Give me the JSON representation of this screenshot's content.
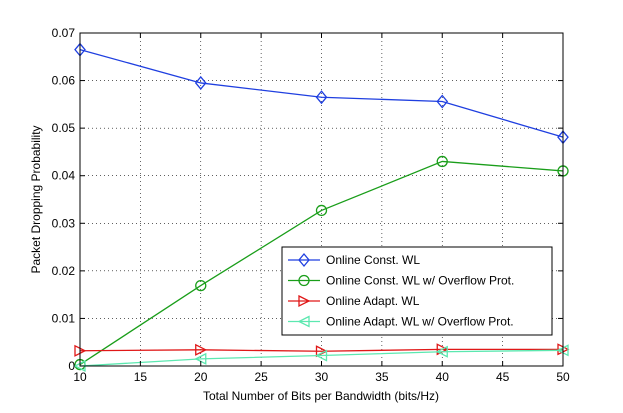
{
  "chart_data": {
    "type": "line",
    "title": "",
    "xlabel": "Total Number of Bits per Bandwidth (bits/Hz)",
    "ylabel": "Packet Dropping Probability",
    "xlim": [
      10,
      50
    ],
    "ylim": [
      0,
      0.07
    ],
    "xticks": [
      10,
      15,
      20,
      25,
      30,
      35,
      40,
      45,
      50
    ],
    "yticks": [
      0,
      0.01,
      0.02,
      0.03,
      0.04,
      0.05,
      0.06,
      0.07
    ],
    "xtick_labels": [
      "10",
      "15",
      "20",
      "25",
      "30",
      "35",
      "40",
      "45",
      "50"
    ],
    "ytick_labels": [
      "0",
      "0.01",
      "0.02",
      "0.03",
      "0.04",
      "0.05",
      "0.06",
      "0.07"
    ],
    "grid": true,
    "legend_position": "lower-right",
    "x": [
      10,
      20,
      30,
      40,
      50
    ],
    "series": [
      {
        "name": "Online Const. WL",
        "color": "#1f3fe0",
        "marker": "diamond",
        "values": [
          0.0665,
          0.0595,
          0.0565,
          0.0556,
          0.0481
        ]
      },
      {
        "name": "Online Const. WL w/ Overflow Prot.",
        "color": "#1a9e1a",
        "marker": "circle",
        "values": [
          0.0003,
          0.0169,
          0.0327,
          0.043,
          0.041
        ]
      },
      {
        "name": "Online Adapt. WL",
        "color": "#e01818",
        "marker": "triangle-right",
        "values": [
          0.0032,
          0.0034,
          0.0031,
          0.0035,
          0.0035
        ]
      },
      {
        "name": "Online Adapt. WL w/ Overflow Prot.",
        "color": "#5ce8b0",
        "marker": "triangle-left",
        "values": [
          0.0,
          0.0015,
          0.0022,
          0.003,
          0.0033
        ]
      }
    ]
  }
}
